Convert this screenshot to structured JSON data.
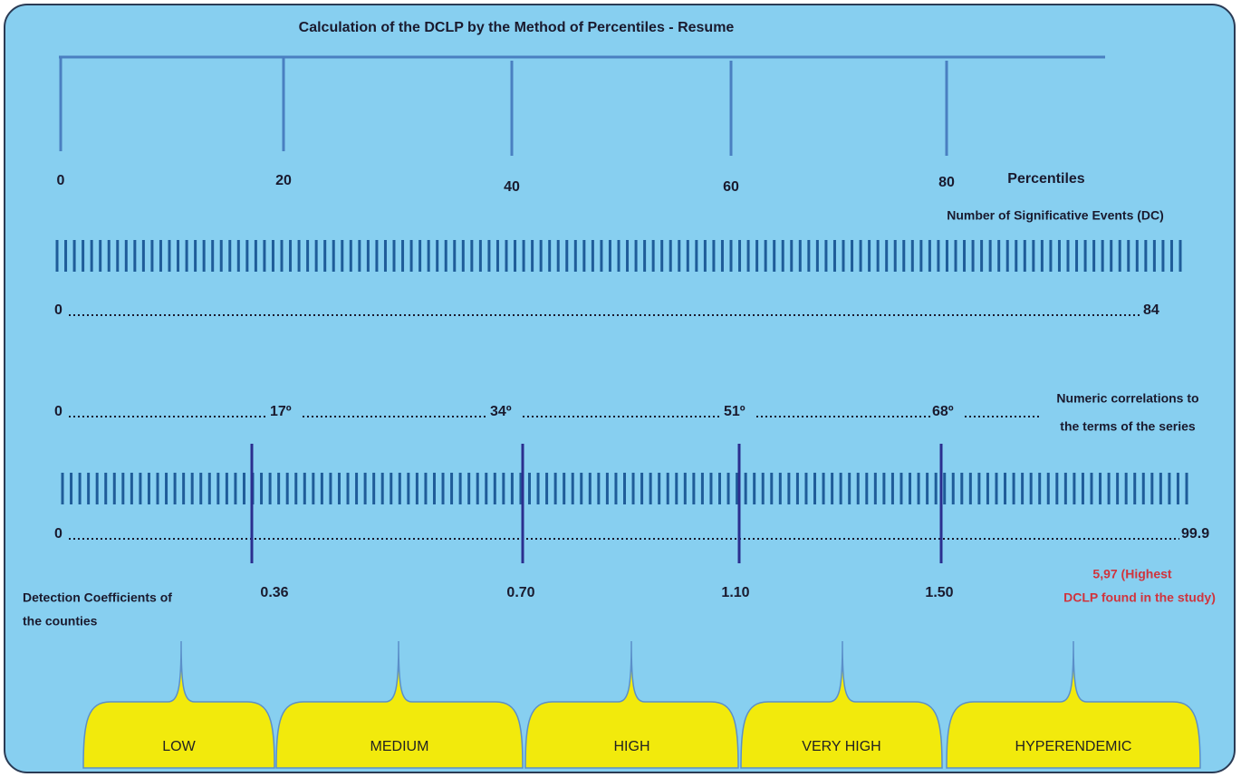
{
  "title": "Calculation of the DCLP by the Method of Percentiles - Resume",
  "percentile_scale": {
    "labels": [
      "0",
      "20",
      "40",
      "60",
      "80"
    ],
    "axis_title": "Percentiles"
  },
  "events_scale": {
    "title": "Number of Significative Events (DC)",
    "start": "0",
    "end": "84"
  },
  "correlations": {
    "labels": [
      "0",
      "17º",
      "34º",
      "51º",
      "68º"
    ],
    "note": [
      "Numeric correlations to",
      "the terms of the series"
    ]
  },
  "coefficient_scale": {
    "start": "0",
    "end": "99.9",
    "cut_points": [
      "0.36",
      "0.70",
      "1.10",
      "1.50"
    ],
    "highest": [
      "5,97 (Highest",
      "DCLP found in the study)"
    ],
    "title": [
      "Detection Coefficients of",
      "the counties"
    ]
  },
  "classes": [
    "LOW",
    "MEDIUM",
    "HIGH",
    "VERY HIGH",
    "HYPERENDEMIC"
  ]
}
